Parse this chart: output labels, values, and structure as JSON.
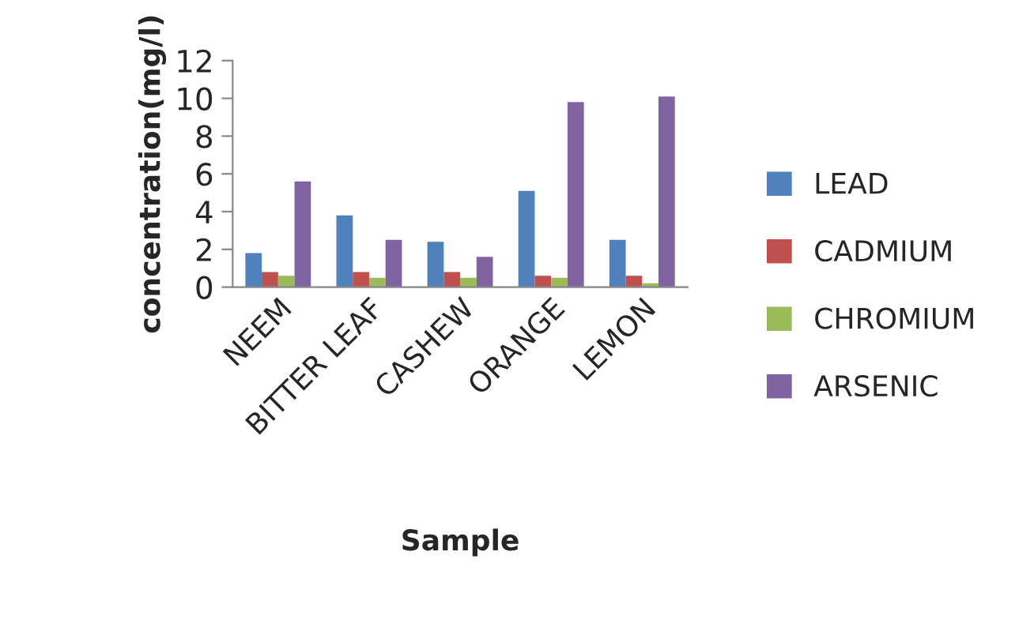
{
  "chart_data": {
    "type": "bar",
    "xlabel": "Sample",
    "ylabel": "concentration(mg/l)",
    "categories": [
      "NEEM",
      "BITTER LEAF",
      "CASHEW",
      "ORANGE",
      "LEMON"
    ],
    "series": [
      {
        "name": "LEAD",
        "color": "#4f81bd",
        "values": [
          1.8,
          3.8,
          2.4,
          5.1,
          2.5
        ]
      },
      {
        "name": "CADMIUM",
        "color": "#c0504d",
        "values": [
          0.8,
          0.8,
          0.8,
          0.6,
          0.6
        ]
      },
      {
        "name": "CHROMIUM",
        "color": "#9bbb59",
        "values": [
          0.6,
          0.5,
          0.5,
          0.5,
          0.2
        ]
      },
      {
        "name": "ARSENIC",
        "color": "#8064a2",
        "values": [
          5.6,
          2.5,
          1.6,
          9.8,
          10.1
        ]
      }
    ],
    "ylim": [
      0,
      12
    ],
    "yticks": [
      0,
      2,
      4,
      6,
      8,
      10,
      12
    ],
    "grid": false,
    "legend": "right"
  }
}
